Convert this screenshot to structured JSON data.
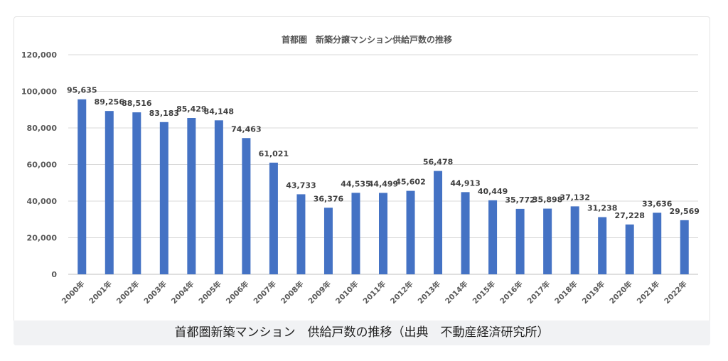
{
  "chart_data": {
    "type": "bar",
    "title": "首都圏　新築分譲マンション供給戸数の推移",
    "xlabel": "",
    "ylabel": "",
    "ylim": [
      0,
      120000
    ],
    "yticks": [
      0,
      20000,
      40000,
      60000,
      80000,
      100000,
      120000
    ],
    "ytick_labels": [
      "0",
      "20,000",
      "40,000",
      "60,000",
      "80,000",
      "100,000",
      "120,000"
    ],
    "categories": [
      "2000年",
      "2001年",
      "2002年",
      "2003年",
      "2004年",
      "2005年",
      "2006年",
      "2007年",
      "2008年",
      "2009年",
      "2010年",
      "2011年",
      "2012年",
      "2013年",
      "2014年",
      "2015年",
      "2016年",
      "2017年",
      "2018年",
      "2019年",
      "2020年",
      "2021年",
      "2022年"
    ],
    "values": [
      95635,
      89256,
      88516,
      83183,
      85429,
      84148,
      74463,
      61021,
      43733,
      36376,
      44535,
      44499,
      45602,
      56478,
      44913,
      40449,
      35772,
      35898,
      37132,
      31238,
      27228,
      33636,
      29569
    ],
    "value_labels": [
      "95,635",
      "89,256",
      "88,516",
      "83,183",
      "85,429",
      "84,148",
      "74,463",
      "61,021",
      "43,733",
      "36,376",
      "44,535",
      "44,499",
      "45,602",
      "56,478",
      "44,913",
      "40,449",
      "35,772",
      "35,898",
      "37,132",
      "31,238",
      "27,228",
      "33,636",
      "29,569"
    ],
    "bar_color": "#4472c4",
    "grid": true
  },
  "caption": "首都圏新築マンション　供給戸数の推移（出典　不動産経済研究所）"
}
